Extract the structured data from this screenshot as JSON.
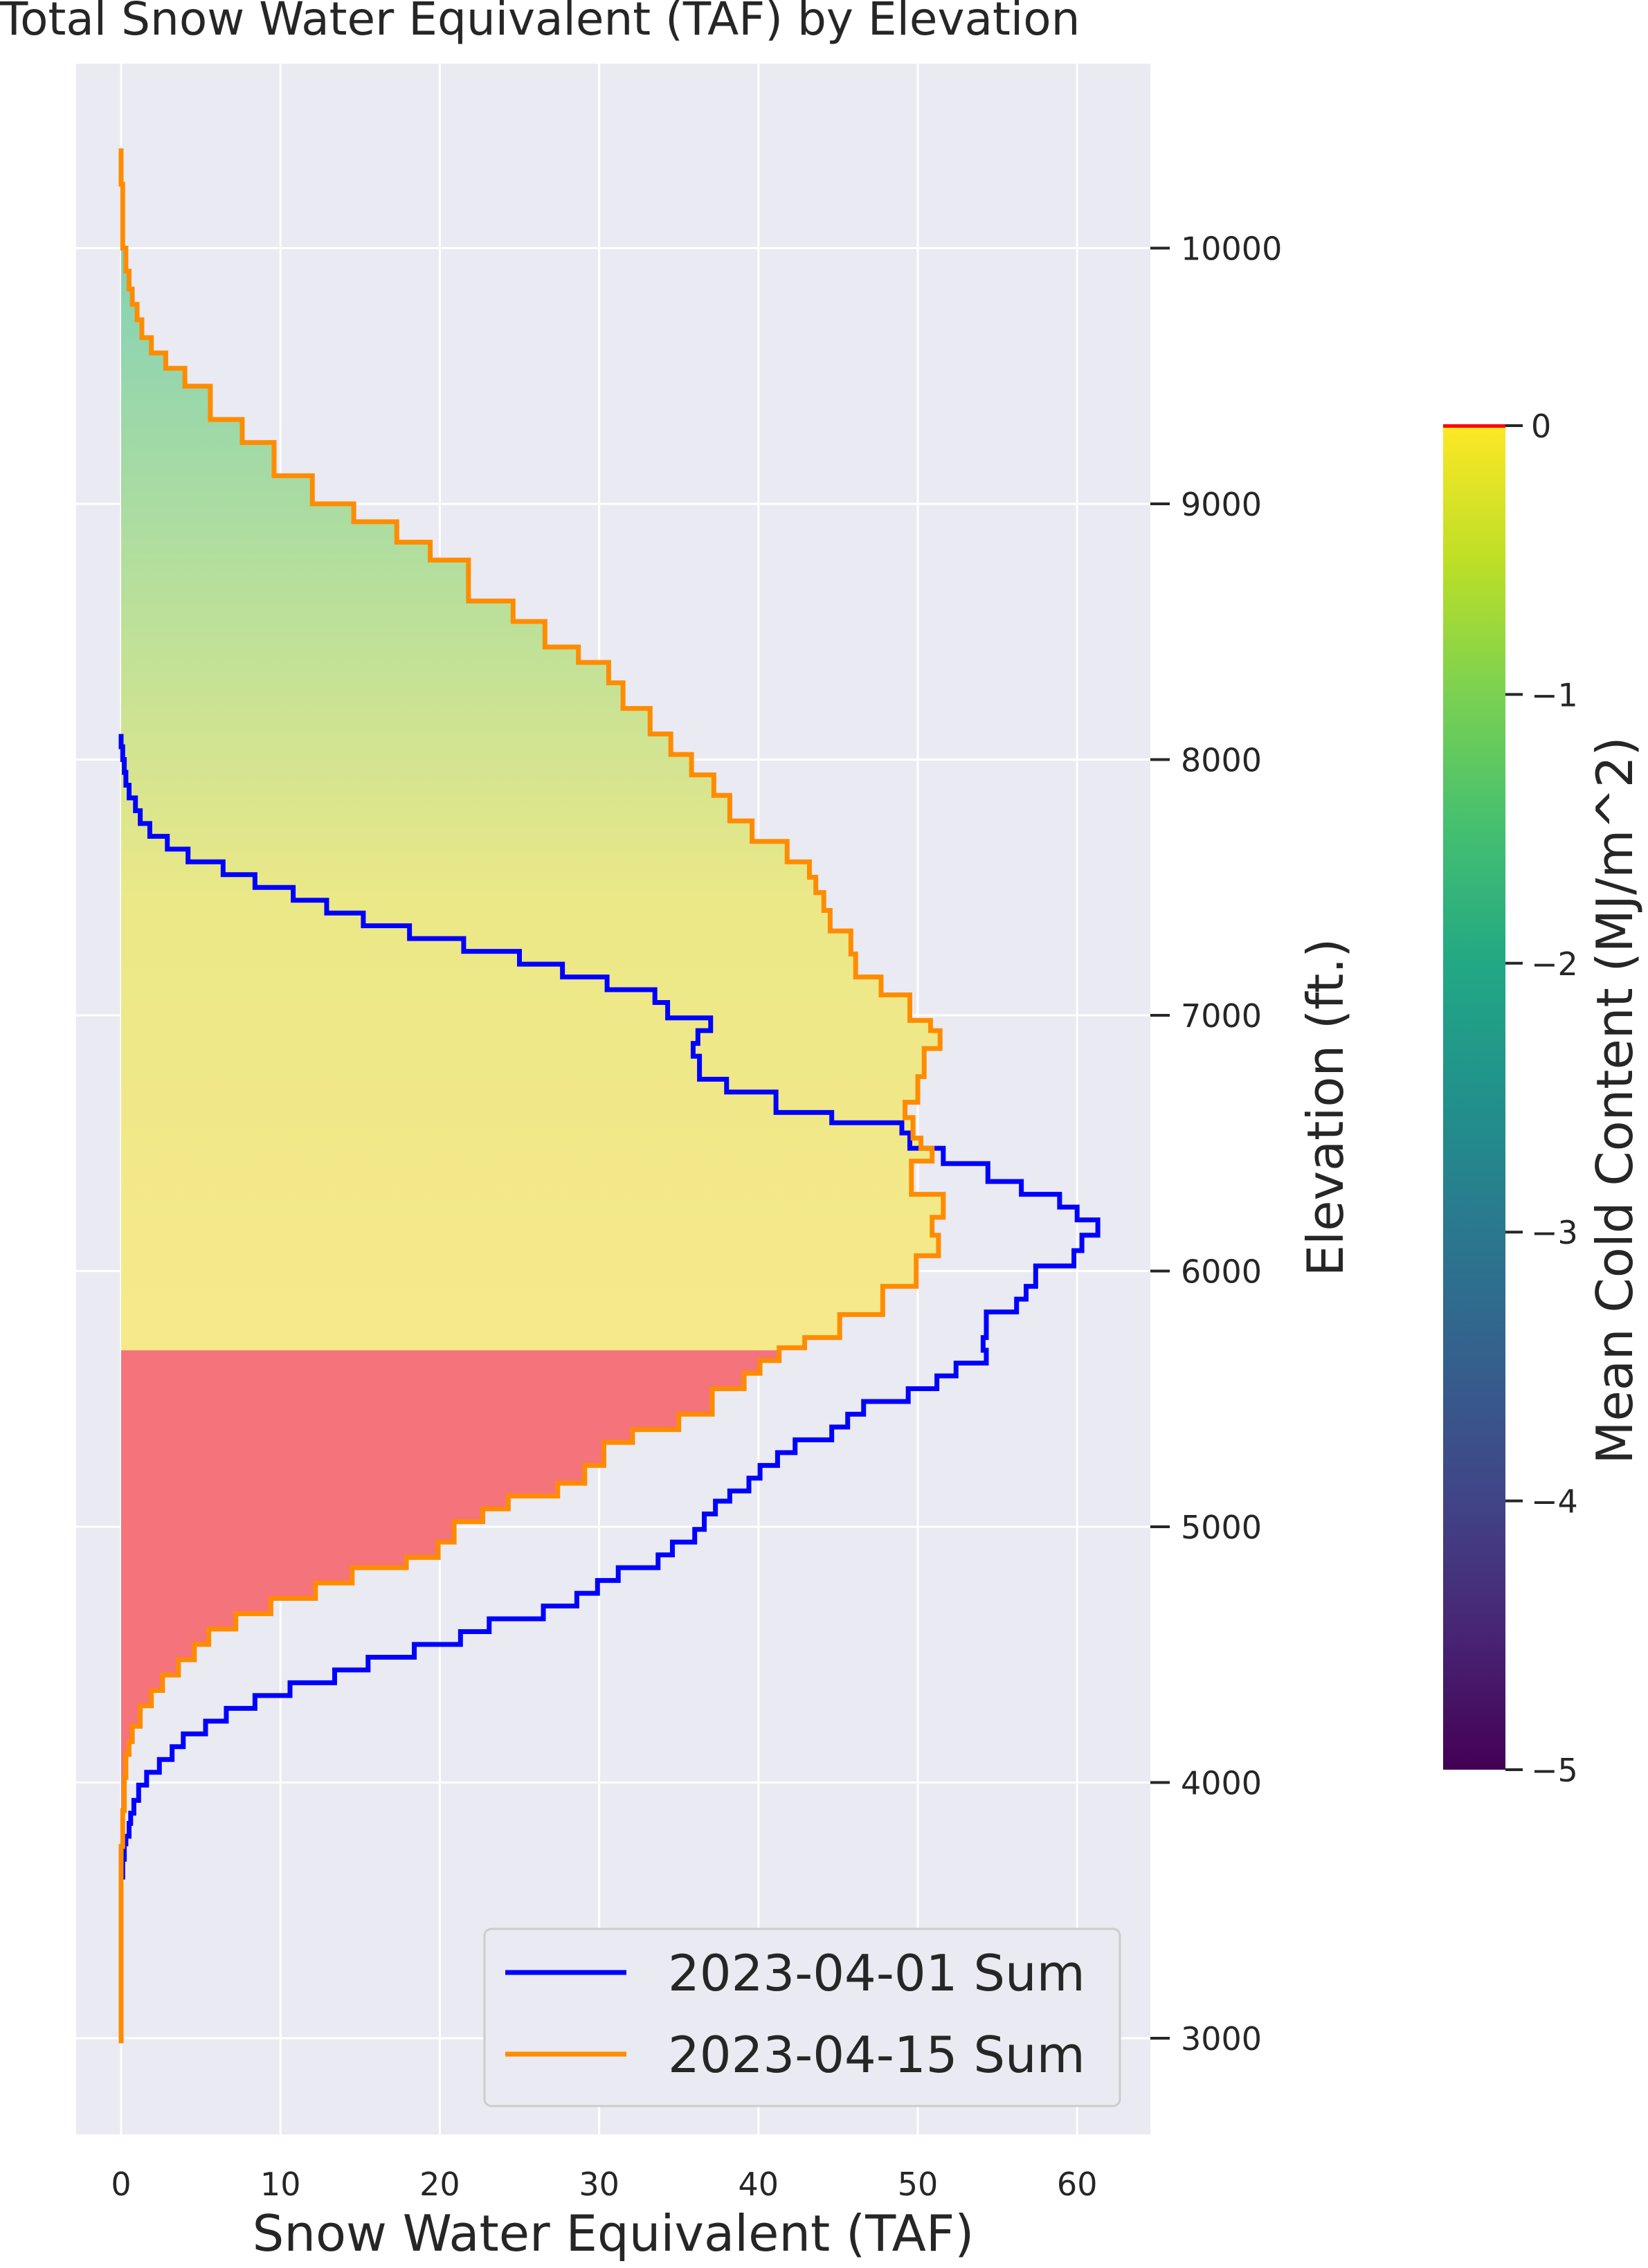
{
  "chart_data": {
    "type": "line",
    "title": "Total Snow Water Equivalent (TAF) by Elevation",
    "xlabel": "Snow Water Equivalent (TAF)",
    "ylabel": "Elevation (ft.)",
    "xlim": [
      -3,
      64.5
    ],
    "ylim": [
      2650,
      10700
    ],
    "xticks": [
      0,
      10,
      20,
      30,
      40,
      50,
      60
    ],
    "yticks": [
      3000,
      4000,
      5000,
      6000,
      7000,
      8000,
      9000,
      10000
    ],
    "grid": true,
    "legend": {
      "placement": "lower-right",
      "entries": [
        "2023-04-01 Sum",
        "2023-04-15 Sum"
      ]
    },
    "series": [
      {
        "name": "2023-04-01 Sum",
        "color": "#0000ff",
        "x": [
          0,
          0,
          0.1,
          0.2,
          0.3,
          0.5,
          0.6,
          0.8,
          1.1,
          1.6,
          2.4,
          3.2,
          3.9,
          5.3,
          6.6,
          8.4,
          10.6,
          13.4,
          15.5,
          18.4,
          21.3,
          23.1,
          26.5,
          28.6,
          29.9,
          31.2,
          33.7,
          34.6,
          36,
          36.6,
          37.3,
          38.2,
          39.4,
          40.1,
          41.2,
          42.3,
          44.6,
          45.6,
          46.6,
          49.4,
          51.2,
          52.4,
          54.3,
          54.1,
          54.3,
          56.2,
          56.8,
          57.4,
          59.8,
          60.3,
          61.3,
          60,
          58.9,
          56.5,
          54.4,
          51.6,
          49.5,
          49,
          44.6,
          41.1,
          38,
          36.3,
          36.3,
          35.9,
          36.2,
          37,
          34.3,
          33.5,
          30.5,
          27.7,
          25,
          21.5,
          18.1,
          15.2,
          12.9,
          10.8,
          8.4,
          6.4,
          4.2,
          2.9,
          1.8,
          1.2,
          0.9,
          0.5,
          0.3,
          0.2,
          0.1,
          0,
          0
        ],
        "y": [
          3450,
          3560,
          3630,
          3700,
          3760,
          3790,
          3840,
          3880,
          3930,
          3990,
          4040,
          4090,
          4140,
          4190,
          4240,
          4290,
          4340,
          4390,
          4440,
          4490,
          4540,
          4590,
          4640,
          4690,
          4740,
          4790,
          4840,
          4890,
          4940,
          4990,
          5050,
          5100,
          5140,
          5190,
          5240,
          5290,
          5340,
          5390,
          5440,
          5490,
          5540,
          5590,
          5640,
          5690,
          5740,
          5840,
          5890,
          5940,
          6020,
          6080,
          6140,
          6200,
          6250,
          6300,
          6350,
          6420,
          6480,
          6540,
          6580,
          6620,
          6700,
          6750,
          6790,
          6840,
          6890,
          6940,
          6990,
          7050,
          7100,
          7150,
          7200,
          7250,
          7300,
          7350,
          7400,
          7450,
          7500,
          7550,
          7600,
          7650,
          7700,
          7750,
          7800,
          7850,
          7900,
          7950,
          8000,
          8050,
          8100
        ]
      },
      {
        "name": "2023-04-15 Sum",
        "color": "#ff8c00",
        "x": [
          0,
          0,
          0.1,
          0.2,
          0.3,
          0.5,
          0.7,
          1.2,
          1.9,
          2.6,
          3.6,
          4.6,
          5.5,
          7.2,
          9.4,
          12.2,
          14.5,
          17.9,
          19.9,
          20.9,
          22.7,
          24.3,
          27.4,
          29.1,
          30.3,
          32.1,
          35,
          37.1,
          39.1,
          40.1,
          41.3,
          42.9,
          45.1,
          47.8,
          49.9,
          51.3,
          50.9,
          51.6,
          49.6,
          50.9,
          50.2,
          49.7,
          49.2,
          50,
          50.4,
          51.4,
          50.8,
          49.5,
          47.7,
          46.1,
          45.8,
          44.5,
          44.1,
          43.6,
          43.2,
          41.8,
          39.6,
          38.2,
          37.2,
          35.8,
          34.5,
          33.2,
          31.5,
          30.6,
          28.7,
          26.6,
          24.6,
          21.8,
          19.4,
          17.3,
          14.6,
          12,
          9.6,
          7.6,
          5.6,
          4,
          2.8,
          1.9,
          1.3,
          1,
          0.7,
          0.5,
          0.3,
          0.1,
          0,
          0
        ],
        "y": [
          2980,
          3360,
          3750,
          3890,
          4020,
          4110,
          4160,
          4220,
          4300,
          4360,
          4420,
          4480,
          4540,
          4600,
          4660,
          4720,
          4780,
          4840,
          4880,
          4940,
          5020,
          5070,
          5120,
          5170,
          5240,
          5330,
          5380,
          5440,
          5540,
          5600,
          5650,
          5700,
          5740,
          5830,
          5940,
          6060,
          6140,
          6210,
          6300,
          6430,
          6480,
          6520,
          6600,
          6660,
          6760,
          6870,
          6940,
          6980,
          7080,
          7150,
          7240,
          7330,
          7410,
          7480,
          7540,
          7600,
          7680,
          7760,
          7860,
          7940,
          8020,
          8100,
          8200,
          8300,
          8380,
          8440,
          8540,
          8620,
          8780,
          8850,
          8930,
          9000,
          9110,
          9240,
          9330,
          9460,
          9530,
          9590,
          9650,
          9720,
          9780,
          9840,
          9910,
          10000,
          10250,
          10390
        ]
      }
    ],
    "shading": {
      "description_colormap": "viridis",
      "red_region_below_elevation": 5690,
      "red_color": "#f5737a"
    },
    "colorbar": {
      "label": "Mean Cold Content (MJ/m^2)",
      "colormap": "viridis",
      "range": [
        -5,
        0
      ],
      "ticks": [
        0,
        -1,
        -2,
        -3,
        -4,
        -5
      ],
      "tick_labels": [
        "0",
        "−1",
        "−2",
        "−3",
        "−4",
        "−5"
      ],
      "top_marker_color": "#ff0000"
    }
  }
}
